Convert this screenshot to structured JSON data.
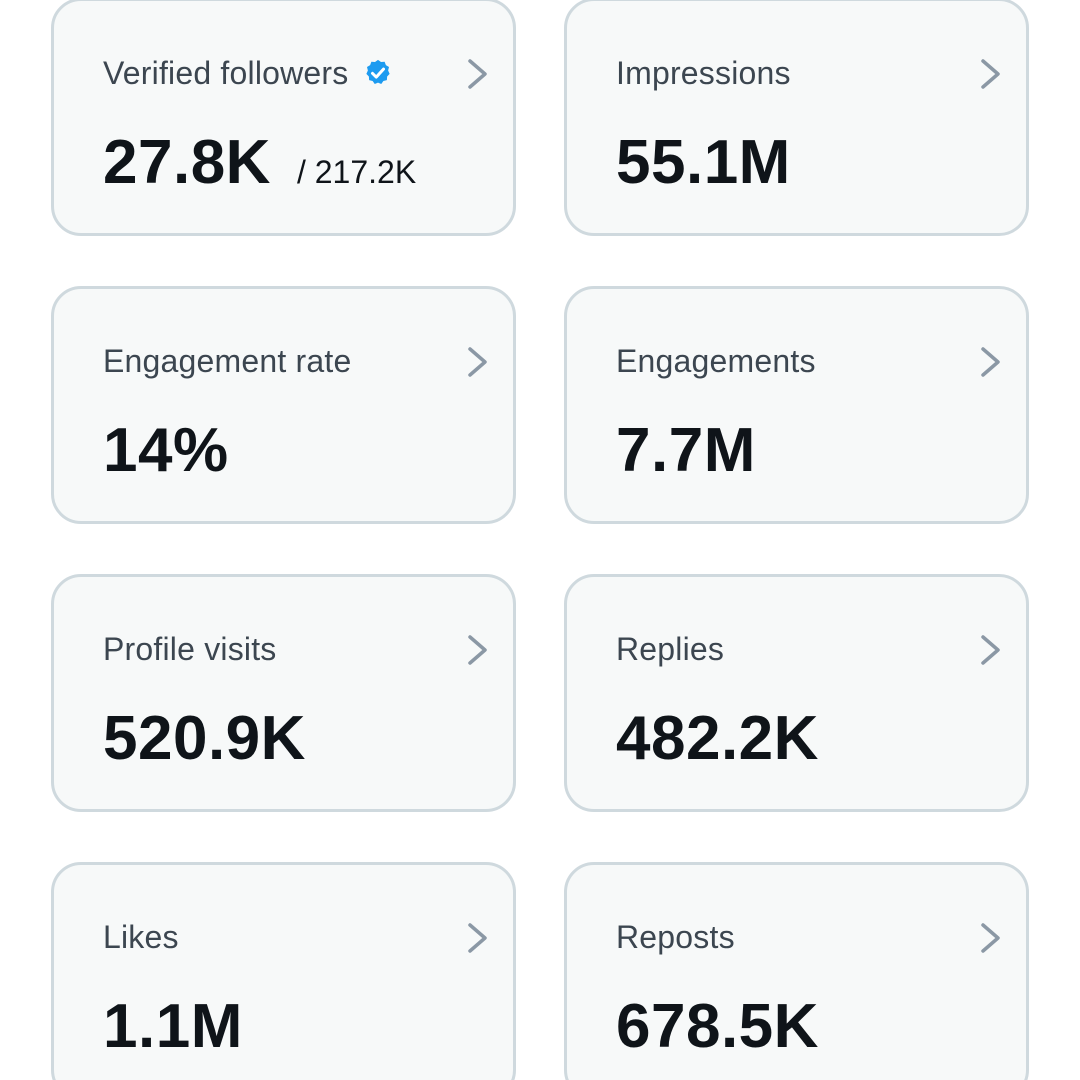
{
  "colors": {
    "card_background": "#f7f9f9",
    "card_border": "#cfd9de",
    "label_text": "#3c4650",
    "value_text": "#0f1419",
    "chevron": "#8b98a5",
    "verified_badge": "#1d9bf0"
  },
  "icons": {
    "chevron": "chevron-right-icon",
    "verified": "verified-badge-icon"
  },
  "cards": [
    {
      "label": "Verified followers",
      "value": "27.8K",
      "suffix": "/ 217.2K",
      "verified": true
    },
    {
      "label": "Impressions",
      "value": "55.1M"
    },
    {
      "label": "Engagement rate",
      "value": "14%"
    },
    {
      "label": "Engagements",
      "value": "7.7M"
    },
    {
      "label": "Profile visits",
      "value": "520.9K"
    },
    {
      "label": "Replies",
      "value": "482.2K"
    },
    {
      "label": "Likes",
      "value": "1.1M"
    },
    {
      "label": "Reposts",
      "value": "678.5K"
    }
  ]
}
